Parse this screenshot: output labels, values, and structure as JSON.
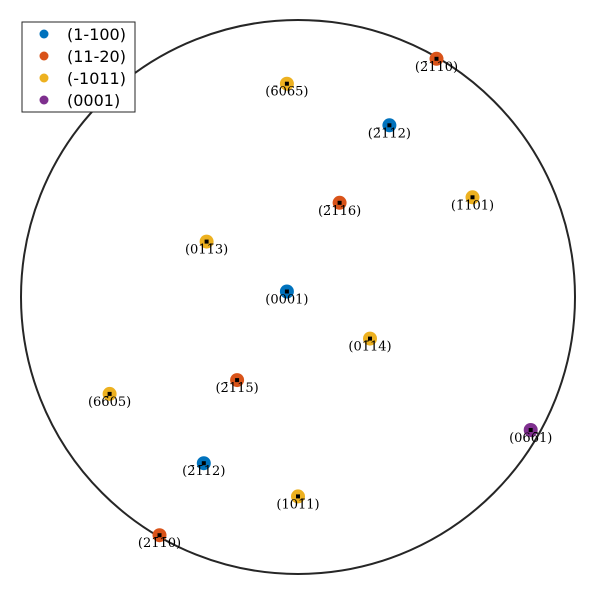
{
  "chart_data": {
    "type": "scatter",
    "projection": "stereographic pole figure",
    "legend_position": "top-left",
    "series": [
      {
        "name": "(1-100)",
        "color": "#0072BD",
        "points": [
          {
            "label": "(2̄112)",
            "x": 0.33,
            "y": 0.62
          },
          {
            "label": "(0001)",
            "x": -0.04,
            "y": 0.02
          },
          {
            "label": "(2̄1̄12)",
            "x": -0.34,
            "y": -0.6
          }
        ]
      },
      {
        "name": "(11-20)",
        "color": "#D95319",
        "points": [
          {
            "label": "(2̄110)",
            "x": 0.5,
            "y": 0.86
          },
          {
            "label": "(2̄116)",
            "x": 0.15,
            "y": 0.34
          },
          {
            "label": "(2̄115)",
            "x": -0.22,
            "y": -0.3
          },
          {
            "label": "(21̄1̄0)",
            "x": -0.5,
            "y": -0.86
          }
        ]
      },
      {
        "name": "(-1011)",
        "color": "#EDB120",
        "points": [
          {
            "label": "(6̄065)",
            "x": -0.04,
            "y": 0.77
          },
          {
            "label": "(1̄101)",
            "x": 0.63,
            "y": 0.36
          },
          {
            "label": "(011̄3)",
            "x": -0.33,
            "y": 0.2
          },
          {
            "label": "(01̄14)",
            "x": 0.26,
            "y": -0.15
          },
          {
            "label": "(66̄05)",
            "x": -0.68,
            "y": -0.35
          },
          {
            "label": "(101̄1)",
            "x": 0.0,
            "y": -0.72
          }
        ]
      },
      {
        "name": "(0001)",
        "color": "#7E2F8E",
        "points": [
          {
            "label": "(066̄1)",
            "x": 0.84,
            "y": -0.48
          }
        ]
      }
    ]
  }
}
